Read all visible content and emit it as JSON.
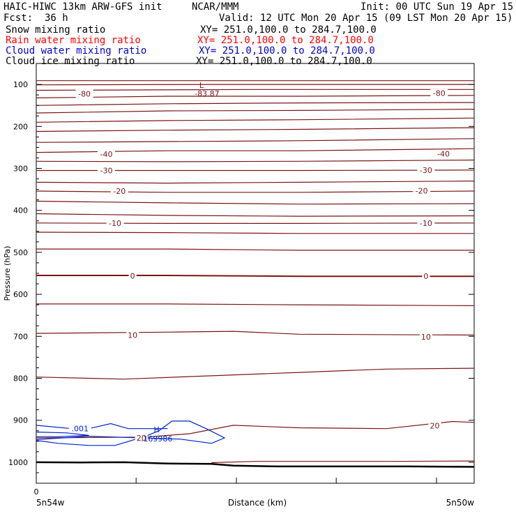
{
  "header": {
    "title": "HAIC-HIWC 13km ARW-GFS init",
    "org": "NCAR/MMM",
    "init": "Init: 00 UTC Sun 19 Apr 15",
    "fcst_label": "Fcst:",
    "fcst_value": "36 h",
    "valid": "Valid: 12 UTC Mon 20 Apr 15 (09 LST Mon 20 Apr 15)"
  },
  "fields": [
    {
      "name": "Snow mixing ratio",
      "xy": "XY= 251.0,100.0 to 284.7,100.0",
      "color": "#000000"
    },
    {
      "name": "Rain water mixing ratio",
      "xy": "XY= 251.0,100.0 to 284.7,100.0",
      "color": "#ff0000"
    },
    {
      "name": "Cloud water mixing ratio",
      "xy": "XY= 251.0,100.0 to 284.7,100.0",
      "color": "#0000cc"
    },
    {
      "name": "Cloud ice mixing ratio",
      "xy": "XY= 251.0,100.0 to 284.7,100.0",
      "color": "#000000"
    }
  ],
  "chart_data": {
    "type": "contour",
    "ylabel": "Pressure (hPa)",
    "xlabel": "Distance (km)",
    "x_tick_label": "0",
    "x_left_label": "5n54w",
    "x_right_label": "5n50w",
    "y_ticks": [
      100,
      200,
      300,
      400,
      500,
      600,
      700,
      800,
      900,
      1000
    ],
    "ylim": [
      50,
      1050
    ],
    "temperature_contour_color": "#7a1515",
    "cloud_water_color": "#0022cc",
    "temperature_labels": [
      {
        "text": "-80",
        "x": 0.11,
        "p": 122
      },
      {
        "text": "-80",
        "x": 0.92,
        "p": 121
      },
      {
        "text": "-40",
        "x": 0.16,
        "p": 266
      },
      {
        "text": "-40",
        "x": 0.93,
        "p": 265
      },
      {
        "text": "-30",
        "x": 0.16,
        "p": 305
      },
      {
        "text": "-30",
        "x": 0.89,
        "p": 304
      },
      {
        "text": "-20",
        "x": 0.19,
        "p": 354
      },
      {
        "text": "-20",
        "x": 0.88,
        "p": 353
      },
      {
        "text": "-10",
        "x": 0.18,
        "p": 430
      },
      {
        "text": "-10",
        "x": 0.89,
        "p": 430
      },
      {
        "text": "0",
        "x": 0.22,
        "p": 556
      },
      {
        "text": "0",
        "x": 0.89,
        "p": 557
      },
      {
        "text": "10",
        "x": 0.22,
        "p": 697
      },
      {
        "text": "10",
        "x": 0.89,
        "p": 701
      },
      {
        "text": "20",
        "x": 0.24,
        "p": 942
      },
      {
        "text": "20",
        "x": 0.91,
        "p": 913
      }
    ],
    "low_marker": {
      "symbol": "L",
      "value": "-83.87",
      "x": 0.39,
      "p": 85
    },
    "high_marker": {
      "symbol": "H",
      "value": ".169986",
      "x": 0.275,
      "p": 935
    },
    "cloud_water_labels": [
      {
        "text": ".001",
        "x": 0.1,
        "p": 920
      }
    ],
    "surface_pressure": [
      [
        0,
        1000
      ],
      [
        0.1,
        1000.5
      ],
      [
        0.2,
        1000
      ],
      [
        0.3,
        1003
      ],
      [
        0.4,
        1004
      ],
      [
        0.45,
        1008
      ],
      [
        0.55,
        1010
      ],
      [
        0.7,
        1010
      ],
      [
        0.85,
        1010
      ],
      [
        1,
        1011
      ]
    ],
    "temperature_contours": [
      [
        [
          0,
          91
        ],
        [
          1,
          91
        ]
      ],
      [
        [
          0,
          101
        ],
        [
          0.4,
          100
        ],
        [
          1,
          100
        ]
      ],
      [
        [
          0,
          114
        ],
        [
          0.5,
          112
        ],
        [
          1,
          112
        ]
      ],
      [
        [
          0,
          132
        ],
        [
          0.3,
          128
        ],
        [
          0.6,
          128
        ],
        [
          1,
          126
        ]
      ],
      [
        [
          0,
          150
        ],
        [
          0.3,
          146
        ],
        [
          0.6,
          144
        ],
        [
          1,
          143
        ]
      ],
      [
        [
          0,
          168
        ],
        [
          0.3,
          163
        ],
        [
          0.6,
          162
        ],
        [
          1,
          159
        ]
      ],
      [
        [
          0,
          190
        ],
        [
          0.3,
          186
        ],
        [
          0.6,
          184
        ],
        [
          1,
          180
        ]
      ],
      [
        [
          0,
          212
        ],
        [
          0.3,
          209
        ],
        [
          0.6,
          207
        ],
        [
          1,
          203
        ]
      ],
      [
        [
          0,
          238
        ],
        [
          0.3,
          236
        ],
        [
          0.6,
          234
        ],
        [
          1,
          229
        ]
      ],
      [
        [
          0,
          262
        ],
        [
          0.3,
          258
        ],
        [
          0.6,
          258
        ],
        [
          1,
          253
        ]
      ],
      [
        [
          0,
          283
        ],
        [
          0.3,
          284
        ],
        [
          0.6,
          283
        ],
        [
          1,
          280
        ]
      ],
      [
        [
          0,
          305
        ],
        [
          0.3,
          305
        ],
        [
          0.6,
          305
        ],
        [
          1,
          304
        ]
      ],
      [
        [
          0,
          333
        ],
        [
          0.3,
          335
        ],
        [
          0.6,
          333
        ],
        [
          1,
          330
        ]
      ],
      [
        [
          0,
          354
        ],
        [
          0.3,
          357
        ],
        [
          0.6,
          357
        ],
        [
          1,
          354
        ]
      ],
      [
        [
          0,
          378
        ],
        [
          0.3,
          382
        ],
        [
          0.6,
          385
        ],
        [
          1,
          384
        ]
      ],
      [
        [
          0,
          408
        ],
        [
          0.3,
          412
        ],
        [
          0.6,
          414
        ],
        [
          1,
          413
        ]
      ],
      [
        [
          0,
          430
        ],
        [
          0.3,
          431
        ],
        [
          0.6,
          431
        ],
        [
          1,
          430
        ]
      ],
      [
        [
          0,
          452
        ],
        [
          0.3,
          453
        ],
        [
          0.6,
          455
        ],
        [
          1,
          455
        ]
      ],
      [
        [
          0,
          492
        ],
        [
          0.3,
          492
        ],
        [
          0.6,
          495
        ],
        [
          1,
          495
        ]
      ],
      [
        [
          0,
          555
        ],
        [
          0.3,
          555
        ],
        [
          0.6,
          557
        ],
        [
          1,
          557
        ]
      ],
      [
        [
          0,
          623
        ],
        [
          0.3,
          623
        ],
        [
          0.6,
          625
        ],
        [
          1,
          627
        ]
      ],
      [
        [
          0,
          693
        ],
        [
          0.3,
          690
        ],
        [
          0.45,
          688
        ],
        [
          0.6,
          695
        ],
        [
          1,
          697
        ]
      ],
      [
        [
          0,
          797
        ],
        [
          0.2,
          802
        ],
        [
          0.5,
          790
        ],
        [
          0.6,
          786
        ],
        [
          0.8,
          778
        ],
        [
          1,
          776
        ]
      ],
      [
        [
          0,
          942
        ],
        [
          0.25,
          940
        ],
        [
          0.35,
          932
        ],
        [
          0.45,
          912
        ],
        [
          0.6,
          918
        ],
        [
          0.8,
          920
        ],
        [
          0.95,
          903
        ],
        [
          1,
          905
        ]
      ],
      [
        [
          0.4,
          1001
        ],
        [
          0.5,
          998
        ],
        [
          0.6,
          998
        ],
        [
          0.8,
          998
        ],
        [
          1,
          997
        ]
      ]
    ],
    "cloud_water_contours": [
      [
        [
          0,
          912
        ],
        [
          0.08,
          920
        ],
        [
          0.12,
          920
        ],
        [
          0.17,
          908
        ],
        [
          0.21,
          920
        ],
        [
          0.3,
          920
        ]
      ],
      [
        [
          0,
          928
        ],
        [
          0.07,
          930
        ],
        [
          0.12,
          936
        ],
        [
          0.05,
          939
        ],
        [
          0,
          939
        ]
      ],
      [
        [
          0,
          946
        ],
        [
          0.12,
          938
        ],
        [
          0.33,
          945
        ],
        [
          0.4,
          955
        ],
        [
          0.43,
          942
        ],
        [
          0.39,
          921
        ],
        [
          0.35,
          902
        ],
        [
          0.31,
          902
        ],
        [
          0.28,
          925
        ],
        [
          0.25,
          938
        ],
        [
          0.18,
          960
        ],
        [
          0.12,
          960
        ],
        [
          0.05,
          955
        ],
        [
          0,
          948
        ]
      ]
    ]
  }
}
